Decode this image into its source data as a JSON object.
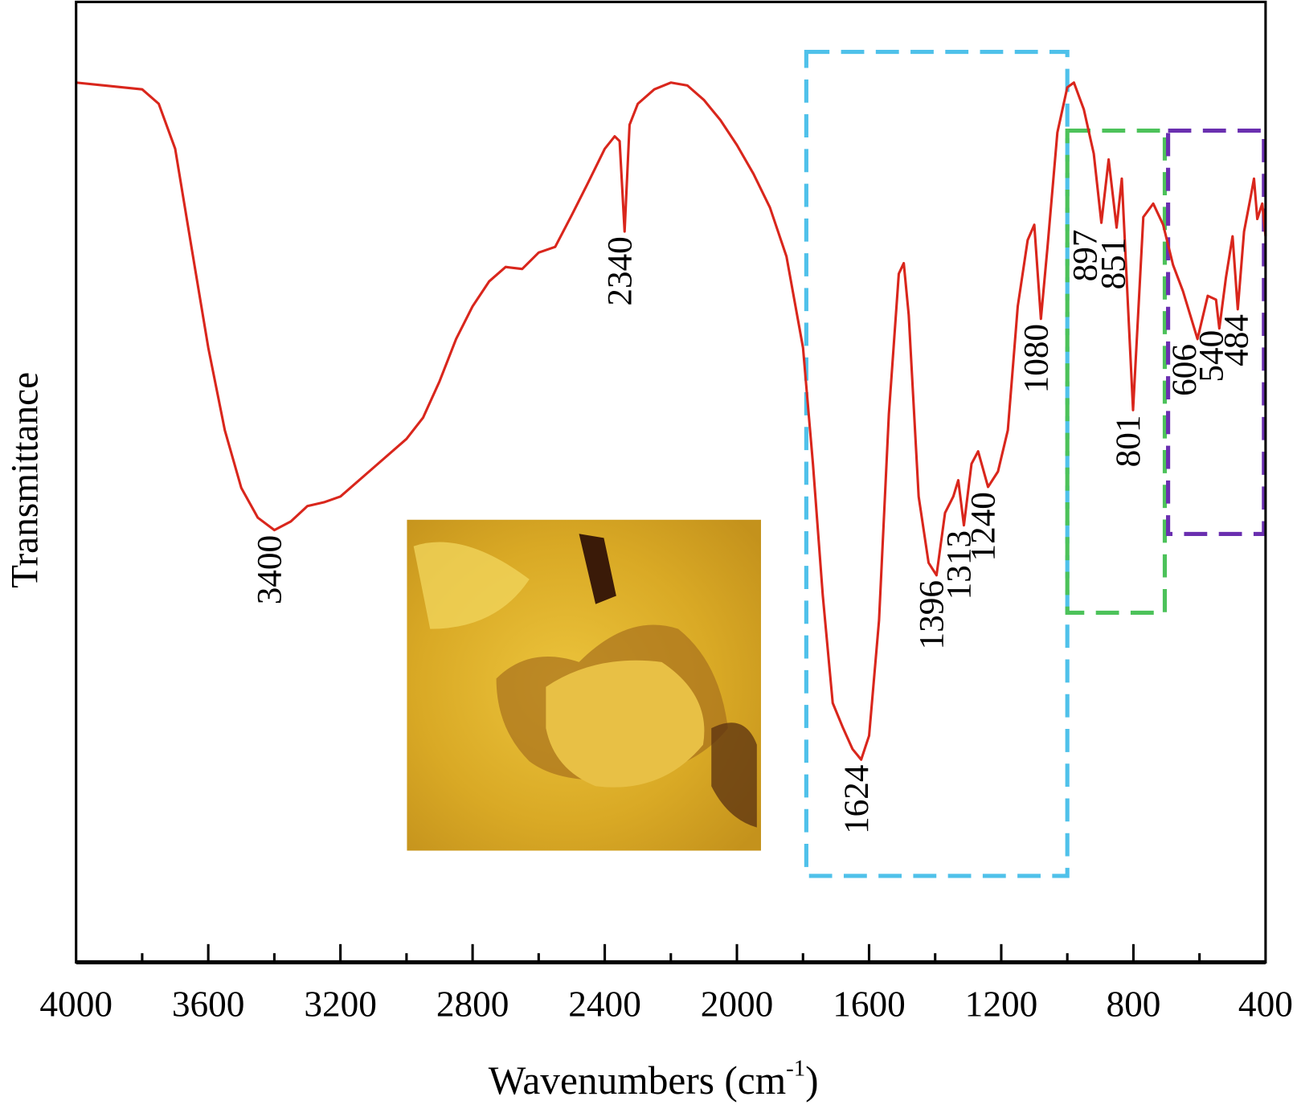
{
  "chart_data": {
    "type": "line",
    "title": "",
    "xlabel": "Wavenumbers (cm",
    "xlabel_sup": "-1",
    "xlabel_close": ")",
    "ylabel": "Transmittance",
    "xlim": [
      4000,
      400
    ],
    "ylim": [
      0,
      100
    ],
    "x_reversed": true,
    "y_ticks_shown": false,
    "grid": false,
    "x_ticks": [
      4000,
      3600,
      3200,
      2800,
      2400,
      2000,
      1600,
      1200,
      800,
      400
    ],
    "x_tick_labels": [
      "4000",
      "3600",
      "3200",
      "2800",
      "2400",
      "2000",
      "1600",
      "1200",
      "800",
      "400"
    ],
    "x_minor_ticks": [
      3800,
      3400,
      3000,
      2600,
      2200,
      1800,
      1400,
      1000,
      600
    ],
    "series": [
      {
        "color": "#d9261c",
        "x": [
          4000,
          3800,
          3750,
          3700,
          3650,
          3600,
          3550,
          3500,
          3450,
          3400,
          3350,
          3300,
          3250,
          3200,
          3100,
          3000,
          2950,
          2900,
          2850,
          2800,
          2750,
          2700,
          2650,
          2600,
          2550,
          2500,
          2450,
          2400,
          2370,
          2355,
          2340,
          2325,
          2300,
          2250,
          2200,
          2150,
          2100,
          2050,
          2000,
          1950,
          1900,
          1850,
          1800,
          1770,
          1740,
          1710,
          1680,
          1650,
          1624,
          1600,
          1570,
          1540,
          1510,
          1495,
          1480,
          1450,
          1420,
          1396,
          1370,
          1345,
          1330,
          1313,
          1290,
          1270,
          1240,
          1210,
          1180,
          1150,
          1120,
          1100,
          1080,
          1060,
          1030,
          1000,
          980,
          950,
          920,
          897,
          875,
          851,
          835,
          801,
          770,
          740,
          710,
          680,
          650,
          606,
          575,
          550,
          540,
          520,
          500,
          484,
          465,
          445,
          435,
          425,
          410,
          400
        ],
        "y": [
          91.6,
          90.9,
          89.4,
          84.7,
          74.3,
          64.0,
          55.4,
          49.4,
          46.3,
          45.0,
          45.9,
          47.5,
          47.9,
          48.5,
          51.5,
          54.5,
          56.7,
          60.5,
          64.9,
          68.3,
          70.9,
          72.4,
          72.2,
          73.9,
          74.5,
          77.8,
          81.2,
          84.7,
          86.0,
          85.5,
          76.1,
          87.2,
          89.4,
          90.9,
          91.6,
          91.3,
          89.8,
          87.7,
          85.1,
          82.1,
          78.6,
          73.5,
          64.0,
          51.9,
          38.2,
          27.0,
          24.5,
          22.2,
          21.1,
          23.6,
          35.6,
          57.1,
          71.7,
          72.8,
          67.4,
          48.5,
          41.6,
          40.3,
          46.8,
          48.5,
          50.2,
          45.5,
          51.9,
          53.2,
          49.5,
          51.1,
          55.4,
          68.3,
          75.2,
          76.8,
          67.0,
          74.5,
          86.4,
          91.1,
          91.6,
          88.8,
          84.2,
          77.0,
          83.6,
          76.5,
          81.6,
          57.5,
          77.6,
          79.0,
          76.8,
          72.6,
          69.9,
          64.9,
          69.4,
          69.0,
          66.0,
          71.3,
          75.6,
          68.0,
          76.1,
          79.7,
          81.6,
          77.4,
          79.0,
          75.6
        ]
      }
    ],
    "annotations": [
      {
        "text": "3400",
        "x": 3400,
        "y": 45.0
      },
      {
        "text": "2340",
        "x": 2340,
        "y": 76.1
      },
      {
        "text": "1624",
        "x": 1624,
        "y": 21.1
      },
      {
        "text": "1396",
        "x": 1396,
        "y": 40.3
      },
      {
        "text": "1313",
        "x": 1313,
        "y": 45.5
      },
      {
        "text": "1240",
        "x": 1240,
        "y": 49.5
      },
      {
        "text": "1080",
        "x": 1080,
        "y": 67.0
      },
      {
        "text": "897",
        "x": 897,
        "y": 77.0
      },
      {
        "text": "851",
        "x": 851,
        "y": 76.5
      },
      {
        "text": "801",
        "x": 801,
        "y": 57.5
      },
      {
        "text": "606",
        "x": 606,
        "y": 64.9
      },
      {
        "text": "540",
        "x": 540,
        "y": 66.0
      },
      {
        "text": "484",
        "x": 484,
        "y": 68.0
      }
    ],
    "regions": [
      {
        "color": "#4fc1ea",
        "x_range": [
          1790,
          1000
        ],
        "y_range": [
          9.0,
          94.8
        ]
      },
      {
        "color": "#4cc25a",
        "x_range": [
          1000,
          705
        ],
        "y_range": [
          36.4,
          86.6
        ]
      },
      {
        "color": "#6a2fb0",
        "x_range": [
          695,
          405
        ],
        "y_range": [
          44.6,
          86.6
        ]
      }
    ],
    "inset": {
      "type": "photo",
      "colors": [
        "#e0b52a",
        "#c9921a",
        "#6b3a10",
        "#f2d45a"
      ]
    }
  }
}
